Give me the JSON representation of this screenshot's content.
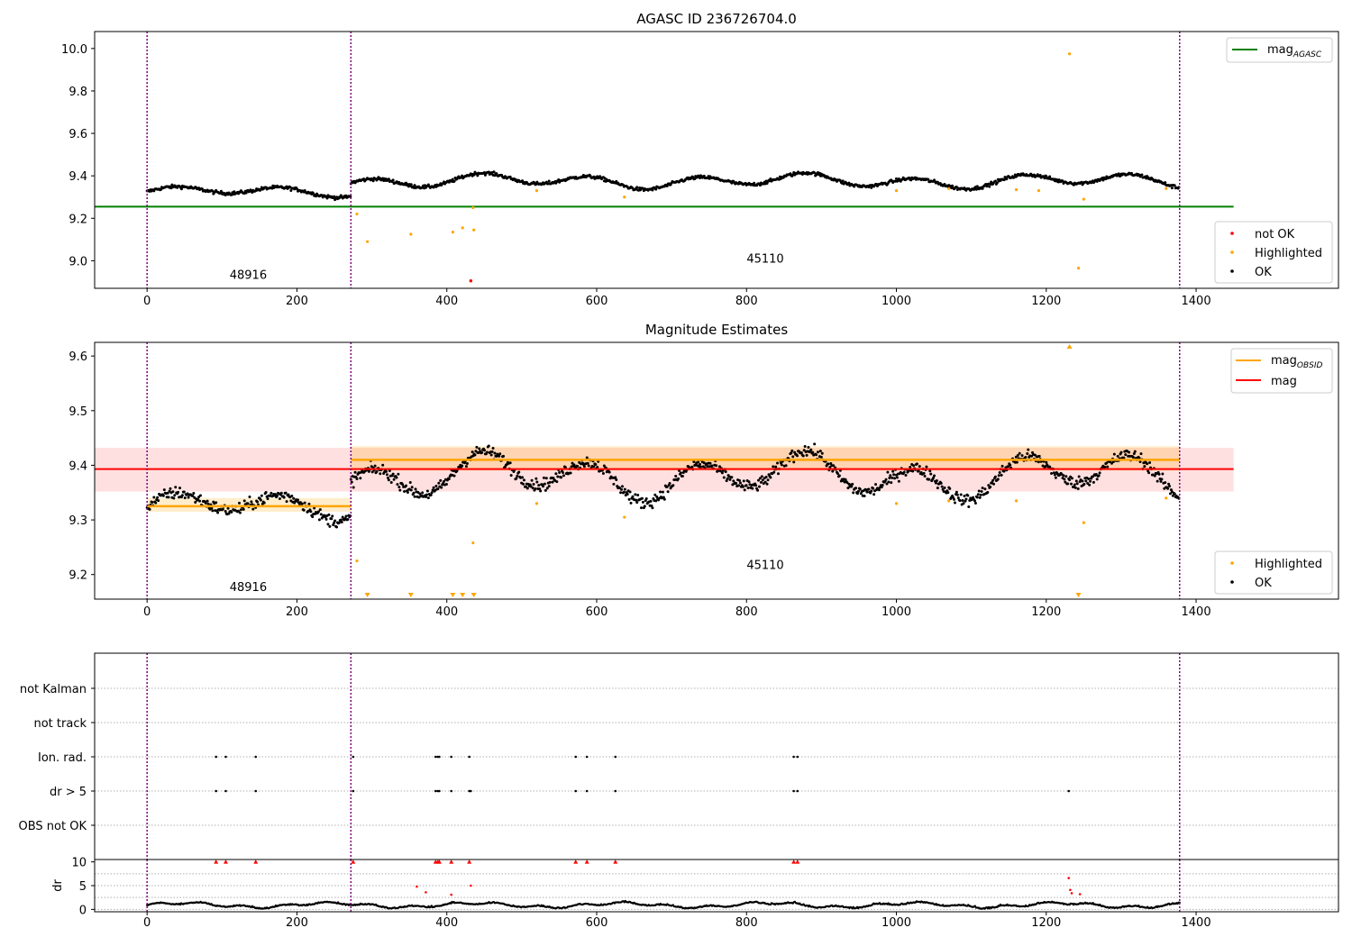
{
  "chart_data": [
    {
      "type": "scatter",
      "title": "AGASC ID 236726704.0",
      "xlim": [
        -70,
        1590
      ],
      "ylim": [
        8.87,
        10.08
      ],
      "xticks": [
        0,
        200,
        400,
        600,
        800,
        1000,
        1200,
        1400
      ],
      "yticks": [
        9.0,
        9.2,
        9.4,
        9.6,
        9.8,
        10.0
      ],
      "observation_boundaries": [
        0,
        272,
        1378
      ],
      "observation_labels": [
        {
          "text": "48916",
          "x": 135,
          "y": 8.915
        },
        {
          "text": "45110",
          "x": 825,
          "y": 8.99
        }
      ],
      "lines": [
        {
          "name": "mag_AGASC",
          "y": 9.255,
          "x0": -70,
          "x1": 1450,
          "color": "#008000"
        }
      ],
      "segments": [
        {
          "x0": 0,
          "x1": 272,
          "mean": 9.325,
          "amp": 0.018
        },
        {
          "x0": 272,
          "x1": 1378,
          "mean": 9.375,
          "amp": 0.025
        }
      ],
      "highlighted_points": [
        [
          280,
          9.22
        ],
        [
          294,
          9.09
        ],
        [
          352,
          9.125
        ],
        [
          408,
          9.135
        ],
        [
          421,
          9.155
        ],
        [
          436,
          9.145
        ],
        [
          435,
          9.25
        ],
        [
          520,
          9.33
        ],
        [
          637,
          9.3
        ],
        [
          1231,
          9.975
        ],
        [
          1243,
          8.965
        ],
        [
          1250,
          9.29
        ],
        [
          1000,
          9.33
        ],
        [
          1070,
          9.34
        ],
        [
          1160,
          9.335
        ],
        [
          1190,
          9.33
        ],
        [
          1360,
          9.34
        ]
      ],
      "notok_points": [
        [
          432,
          8.905
        ]
      ],
      "legend_top": {
        "placement": "upper right",
        "entries": [
          {
            "label": "mag",
            "sub": "AGASC",
            "color": "#008000"
          }
        ]
      },
      "legend_bottom": {
        "placement": "lower right",
        "entries": [
          {
            "label": "not OK",
            "color": "#ff0000"
          },
          {
            "label": "Highlighted",
            "color": "#ffa500"
          },
          {
            "label": "OK",
            "color": "#000000"
          }
        ]
      }
    },
    {
      "type": "scatter",
      "title": "Magnitude Estimates",
      "xlim": [
        -70,
        1590
      ],
      "ylim": [
        9.155,
        9.625
      ],
      "xticks": [
        0,
        200,
        400,
        600,
        800,
        1000,
        1200,
        1400
      ],
      "yticks": [
        9.2,
        9.3,
        9.4,
        9.5,
        9.6
      ],
      "observation_boundaries": [
        0,
        272,
        1378
      ],
      "observation_labels": [
        {
          "text": "48916",
          "x": 135,
          "y": 9.17
        },
        {
          "text": "45110",
          "x": 825,
          "y": 9.21
        }
      ],
      "mag": {
        "value": 9.393,
        "band": [
          9.352,
          9.432
        ],
        "x0": -70,
        "x1": 1450,
        "color": "#ff0000"
      },
      "mag_obsid": [
        {
          "x0": 0,
          "x1": 272,
          "value": 9.325,
          "band": [
            9.315,
            9.34
          ]
        },
        {
          "x0": 272,
          "x1": 1378,
          "value": 9.41,
          "band": [
            9.39,
            9.435
          ]
        }
      ],
      "segments": [
        {
          "x0": 0,
          "x1": 272,
          "mean": 9.325,
          "amp": 0.018
        },
        {
          "x0": 272,
          "x1": 1378,
          "mean": 9.38,
          "amp": 0.03
        }
      ],
      "highlighted_points": [
        [
          280,
          9.225
        ],
        [
          435,
          9.258
        ],
        [
          637,
          9.305
        ],
        [
          1250,
          9.295
        ],
        [
          520,
          9.33
        ],
        [
          1000,
          9.33
        ],
        [
          1070,
          9.335
        ],
        [
          1160,
          9.335
        ],
        [
          1360,
          9.34
        ]
      ],
      "clipped_low": [
        294,
        352,
        408,
        421,
        436,
        1243
      ],
      "clipped_high": [
        1231
      ],
      "legend_top": {
        "placement": "upper right",
        "entries": [
          {
            "label": "mag",
            "sub": "OBSID",
            "color": "#ffa500"
          },
          {
            "label": "mag",
            "sub": "",
            "color": "#ff0000"
          }
        ]
      },
      "legend_bottom": {
        "placement": "lower right",
        "entries": [
          {
            "label": "Highlighted",
            "color": "#ffa500"
          },
          {
            "label": "OK",
            "color": "#000000"
          }
        ]
      }
    },
    {
      "type": "scatter",
      "title": "",
      "xlim": [
        -70,
        1590
      ],
      "categories": [
        "not Kalman",
        "not track",
        "Ion. rad.",
        "dr > 5",
        "OBS not OK"
      ],
      "flags": {
        "Ion. rad.": [
          92,
          105,
          145,
          275,
          385,
          388,
          390,
          406,
          430,
          572,
          587,
          625,
          863,
          868
        ],
        "dr > 5": [
          92,
          105,
          145,
          275,
          385,
          388,
          390,
          406,
          430,
          432,
          572,
          587,
          625,
          863,
          868,
          1230
        ]
      },
      "observation_boundaries": [
        0,
        272,
        1378
      ]
    },
    {
      "type": "scatter",
      "ylabel": "dr",
      "xlim": [
        -70,
        1590
      ],
      "ylim": [
        -0.5,
        10.5
      ],
      "xticks": [
        0,
        200,
        400,
        600,
        800,
        1000,
        1200,
        1400
      ],
      "yticks": [
        0,
        5,
        10
      ],
      "clipped_top": [
        92,
        105,
        145,
        275,
        385,
        388,
        390,
        406,
        430,
        572,
        587,
        625,
        863,
        868
      ],
      "red_points": [
        [
          360,
          4.8
        ],
        [
          372,
          3.6
        ],
        [
          406,
          3.1
        ],
        [
          432,
          5.0
        ],
        [
          1230,
          6.6
        ],
        [
          1232,
          4.1
        ],
        [
          1234,
          3.4
        ],
        [
          1245,
          3.2
        ]
      ],
      "observation_boundaries": [
        0,
        272,
        1378
      ]
    }
  ]
}
